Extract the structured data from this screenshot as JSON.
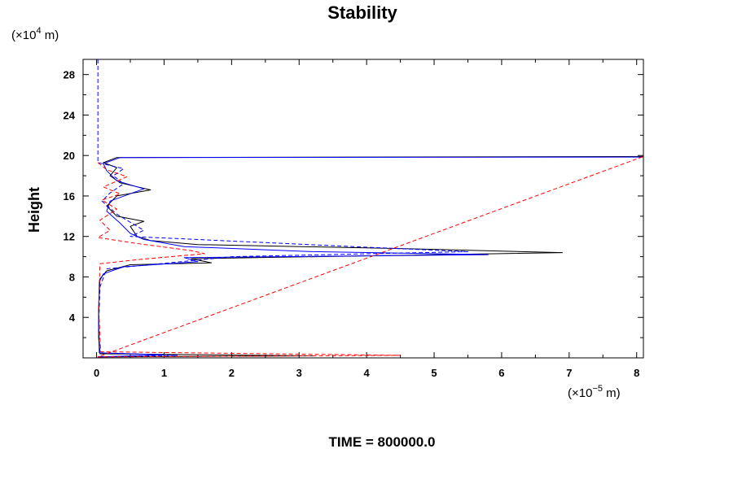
{
  "chart_data": {
    "type": "line",
    "title": "Stability",
    "ylabel": "Height",
    "yunit_prefix": "(×10",
    "yunit_exp": "4",
    "yunit_suffix": " m)",
    "xunit_prefix": "(×10",
    "xunit_exp": "−5",
    "xunit_suffix": " m)",
    "footer": "TIME = 800000.0",
    "xlim": [
      -0.2,
      8.1
    ],
    "ylim": [
      0,
      29.5
    ],
    "xticks": [
      "0",
      "1",
      "2",
      "3",
      "4",
      "5",
      "6",
      "7",
      "8"
    ],
    "yticks": [
      "4",
      "8",
      "12",
      "16",
      "20",
      "24",
      "28"
    ],
    "grid": false,
    "series": [
      {
        "color": "#000000",
        "dash": "solid",
        "points": [
          [
            0.02,
            0.1
          ],
          [
            3.2,
            0.2
          ],
          [
            0.05,
            0.4
          ],
          [
            0.03,
            2.0
          ],
          [
            0.03,
            5.0
          ],
          [
            0.05,
            7.8
          ],
          [
            0.15,
            8.6
          ],
          [
            0.5,
            9.2
          ],
          [
            1.7,
            9.4
          ],
          [
            1.4,
            9.8
          ],
          [
            6.9,
            10.4
          ],
          [
            4.5,
            10.8
          ],
          [
            1.5,
            11.2
          ],
          [
            0.8,
            11.6
          ],
          [
            0.6,
            12.0
          ],
          [
            0.5,
            13.0
          ],
          [
            0.7,
            13.5
          ],
          [
            0.3,
            14.0
          ],
          [
            0.15,
            15.0
          ],
          [
            0.3,
            16.0
          ],
          [
            0.8,
            16.6
          ],
          [
            0.35,
            17.3
          ],
          [
            0.2,
            18.0
          ],
          [
            0.3,
            18.8
          ],
          [
            0.1,
            19.3
          ],
          [
            0.3,
            19.8
          ],
          [
            8.1,
            19.9
          ]
        ]
      },
      {
        "color": "#0000ff",
        "dash": "solid",
        "points": [
          [
            0.02,
            0.1
          ],
          [
            1.0,
            0.3
          ],
          [
            0.04,
            0.5
          ],
          [
            0.03,
            3.0
          ],
          [
            0.04,
            7.5
          ],
          [
            0.1,
            8.3
          ],
          [
            0.4,
            9.0
          ],
          [
            1.5,
            9.5
          ],
          [
            1.3,
            9.9
          ],
          [
            5.8,
            10.2
          ],
          [
            3.2,
            10.5
          ],
          [
            1.3,
            11.0
          ],
          [
            0.7,
            11.7
          ],
          [
            0.5,
            12.3
          ],
          [
            0.35,
            13.3
          ],
          [
            0.15,
            14.5
          ],
          [
            0.2,
            15.5
          ],
          [
            0.7,
            16.7
          ],
          [
            0.3,
            17.5
          ],
          [
            0.15,
            18.5
          ],
          [
            0.1,
            19.2
          ],
          [
            0.35,
            19.8
          ],
          [
            8.1,
            19.85
          ]
        ]
      },
      {
        "color": "#0000ff",
        "dash": "dashed",
        "points": [
          [
            0.02,
            29.5
          ],
          [
            0.02,
            22.0
          ],
          [
            0.02,
            19.3
          ],
          [
            0.4,
            18.7
          ],
          [
            0.25,
            18.0
          ],
          [
            0.4,
            17.2
          ],
          [
            0.2,
            16.3
          ],
          [
            0.08,
            15.5
          ],
          [
            0.3,
            14.2
          ],
          [
            0.7,
            12.6
          ],
          [
            0.5,
            12.0
          ],
          [
            3.8,
            11.0
          ],
          [
            5.5,
            10.5
          ],
          [
            2.0,
            10.0
          ],
          [
            1.4,
            9.6
          ],
          [
            0.15,
            8.8
          ],
          [
            0.05,
            7.0
          ],
          [
            0.03,
            3.0
          ],
          [
            0.05,
            0.5
          ],
          [
            1.2,
            0.25
          ],
          [
            0.02,
            0.1
          ]
        ]
      },
      {
        "color": "#ff0000",
        "dash": "dashed",
        "points": [
          [
            0.02,
            19.3
          ],
          [
            0.15,
            18.6
          ],
          [
            0.45,
            17.9
          ],
          [
            0.1,
            16.9
          ],
          [
            0.35,
            16.2
          ],
          [
            0.08,
            15.6
          ],
          [
            0.3,
            14.7
          ],
          [
            0.05,
            13.6
          ],
          [
            0.2,
            12.6
          ],
          [
            0.02,
            11.9
          ],
          [
            0.6,
            11.3
          ],
          [
            1.4,
            10.6
          ],
          [
            1.6,
            10.3
          ],
          [
            0.6,
            9.7
          ],
          [
            0.05,
            9.3
          ],
          [
            0.03,
            5.0
          ],
          [
            0.06,
            0.6
          ],
          [
            4.5,
            0.25
          ],
          [
            0.02,
            0.1
          ],
          [
            8.1,
            19.9
          ]
        ]
      }
    ]
  }
}
